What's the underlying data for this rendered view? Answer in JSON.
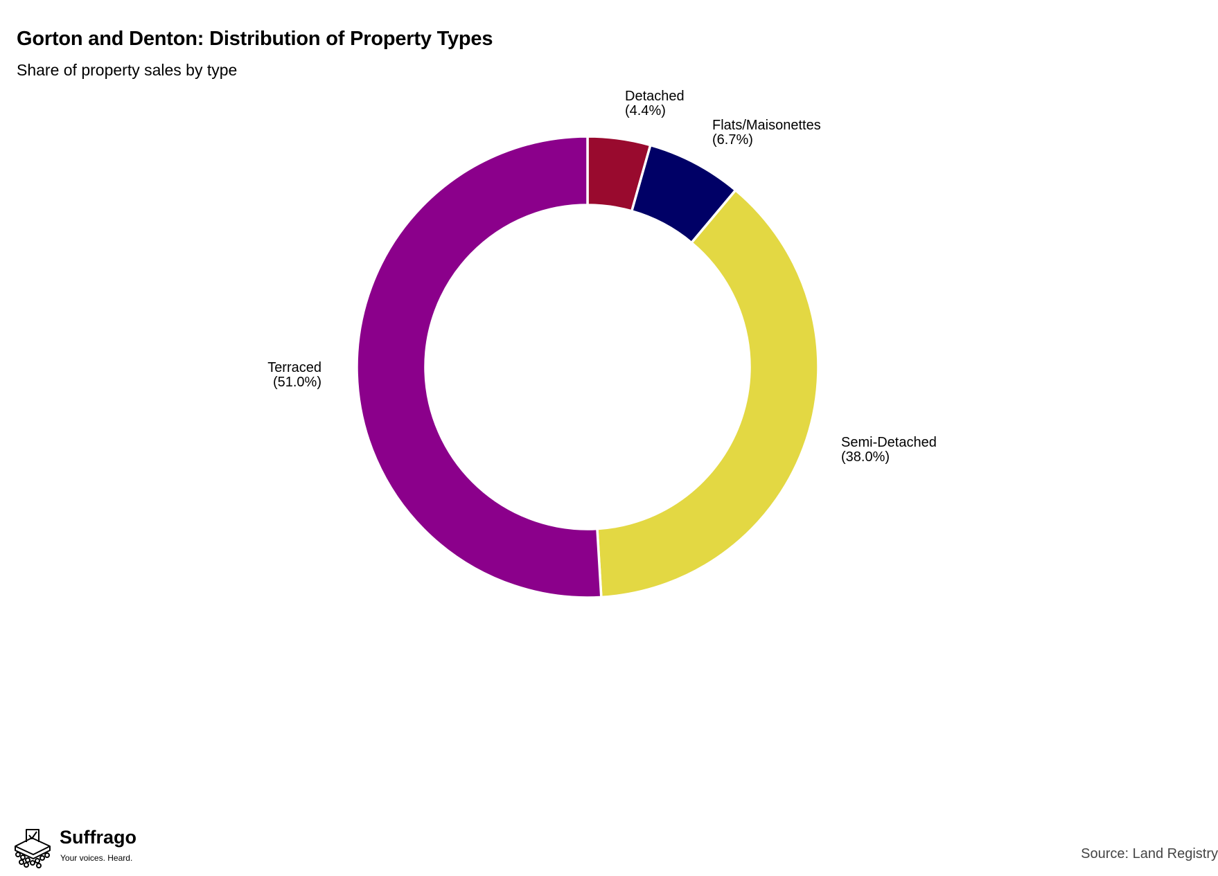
{
  "chart_data": {
    "type": "pie",
    "variant": "donut",
    "title": "Gorton and Denton: Distribution of Property Types",
    "subtitle": "Share of property sales by type",
    "categories": [
      "Detached",
      "Flats/Maisonettes",
      "Semi-Detached",
      "Terraced"
    ],
    "values": [
      4.4,
      6.7,
      38.0,
      51.0
    ],
    "value_labels": [
      "(4.4%)",
      "(6.7%)",
      "(38.0%)",
      "(51.0%)"
    ],
    "colors": [
      "#990a2e",
      "#000066",
      "#e3d843",
      "#8b008b"
    ],
    "unit": "%",
    "start_angle": "12 o'clock",
    "direction": "clockwise",
    "legend": "none",
    "labels": "outside, next to each slice"
  },
  "footer": {
    "brand_name": "Suffrago",
    "brand_tagline": "Your voices. Heard.",
    "source": "Source: Land Registry"
  },
  "icons": {
    "logo": "ballot-box-icon"
  }
}
